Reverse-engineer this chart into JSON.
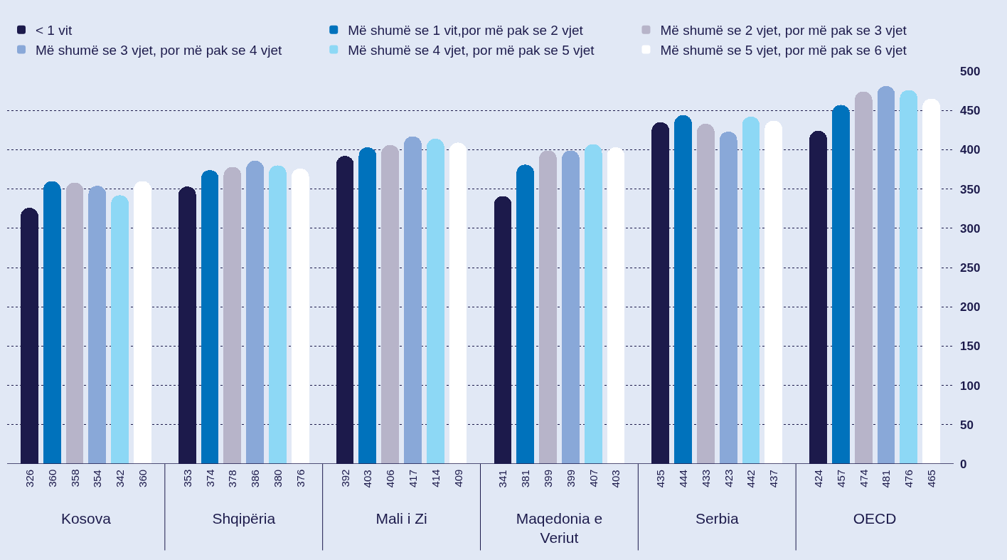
{
  "chart_data": {
    "type": "bar",
    "categories": [
      "Kosova",
      "Shqipëria",
      "Mali i Zi",
      "Maqedonia e Veriut",
      "Serbia",
      "OECD"
    ],
    "series": [
      {
        "name": "< 1 vit",
        "color": "#1c1a4b",
        "values": [
          326,
          353,
          392,
          341,
          435,
          424
        ]
      },
      {
        "name": "Më shumë se 1 vit,por më pak se 2 vjet",
        "color": "#0072bc",
        "values": [
          360,
          374,
          403,
          381,
          444,
          457
        ]
      },
      {
        "name": "Më shumë se 2 vjet, por më pak se 3 vjet",
        "color": "#b7b4c9",
        "values": [
          358,
          378,
          406,
          399,
          433,
          474
        ]
      },
      {
        "name": "Më shumë se 3 vjet, por më pak se 4 vjet",
        "color": "#89a8d8",
        "values": [
          354,
          386,
          417,
          399,
          423,
          481
        ]
      },
      {
        "name": "Më shumë se 4 vjet, por më pak se 5 vjet",
        "color": "#8dd8f5",
        "values": [
          342,
          380,
          414,
          407,
          442,
          476
        ]
      },
      {
        "name": "Më shumë se 5 vjet, por më pak se 6 vjet",
        "color": "#ffffff",
        "values": [
          360,
          376,
          409,
          403,
          437,
          465
        ]
      }
    ],
    "ylim": [
      0,
      500
    ],
    "yticks": [
      0,
      50,
      100,
      150,
      200,
      250,
      300,
      350,
      400,
      450,
      500
    ],
    "grid": "y",
    "legend": "top",
    "data_labels": true
  }
}
